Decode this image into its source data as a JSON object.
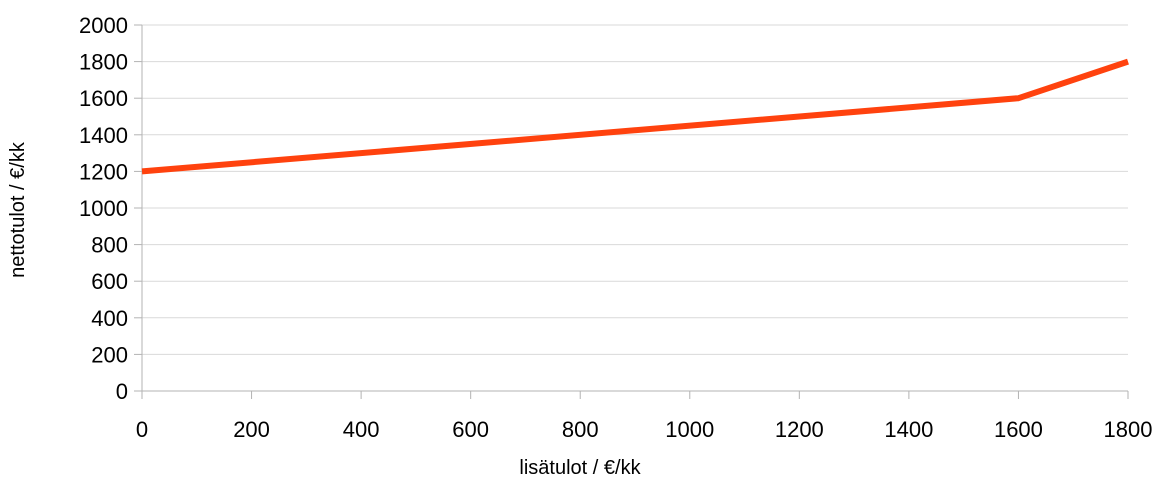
{
  "chart_data": {
    "type": "line",
    "title": "",
    "xlabel": "lisätulot / €/kk",
    "ylabel": "nettotulot / €/kk",
    "xlim": [
      0,
      1800
    ],
    "ylim": [
      0,
      2000
    ],
    "x_ticks": [
      0,
      200,
      400,
      600,
      800,
      1000,
      1200,
      1400,
      1600,
      1800
    ],
    "y_ticks": [
      0,
      200,
      400,
      600,
      800,
      1000,
      1200,
      1400,
      1600,
      1800,
      2000
    ],
    "grid": true,
    "legend": "none",
    "series": [
      {
        "color": "#ff420e",
        "x": [
          0,
          1600,
          1800
        ],
        "y": [
          1200,
          1600,
          1800
        ]
      }
    ]
  }
}
